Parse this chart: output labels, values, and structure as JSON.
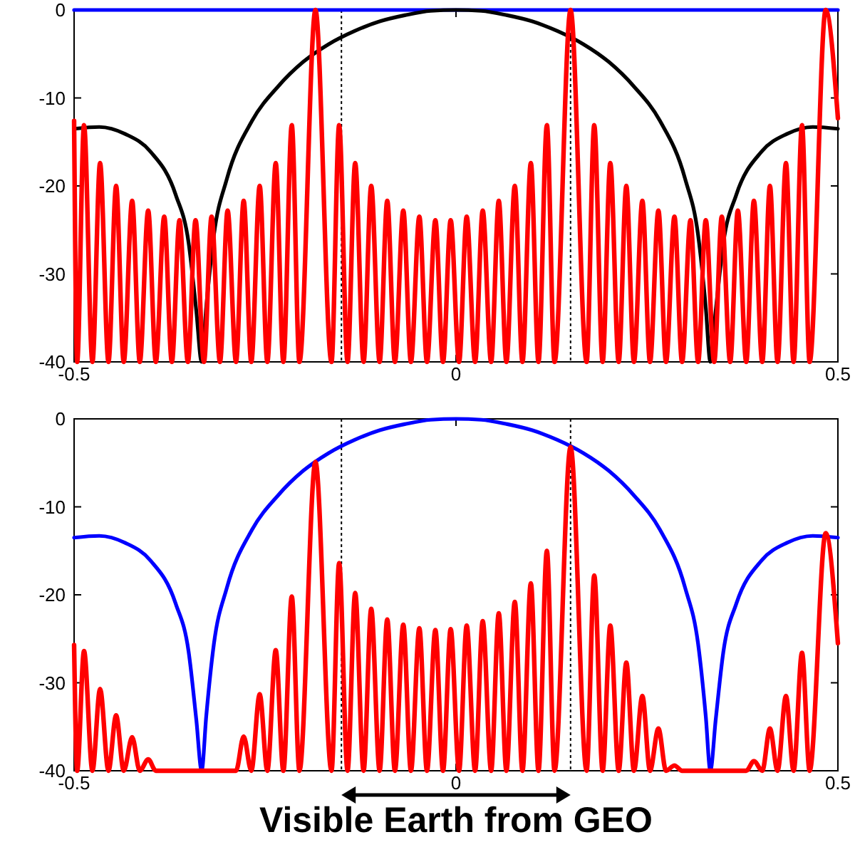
{
  "chart_data": [
    {
      "type": "line",
      "xlim": [
        -0.5,
        0.5
      ],
      "ylim": [
        -40,
        0
      ],
      "xticks": [
        -0.5,
        0,
        0.5
      ],
      "yticks": [
        -40,
        -30,
        -20,
        -10,
        0
      ],
      "ref_lines": [
        {
          "axis": "x",
          "value": -0.15,
          "color": "#000000",
          "line_style": "dotted"
        },
        {
          "axis": "x",
          "value": 0.15,
          "color": "#000000",
          "line_style": "dotted"
        }
      ],
      "series": [
        {
          "color": "#0000ff",
          "x": [
            -0.5,
            0.5
          ],
          "values": [
            0,
            0
          ]
        },
        {
          "color": "#000000",
          "x": [
            -0.5,
            -0.467,
            -0.433,
            -0.4,
            -0.367,
            -0.35,
            -0.34,
            -0.333,
            -0.327,
            -0.317,
            -0.3,
            -0.267,
            -0.233,
            -0.2,
            -0.167,
            -0.133,
            -0.1,
            -0.067,
            -0.033,
            0,
            0.033,
            0.067,
            0.1,
            0.133,
            0.167,
            0.2,
            0.233,
            0.267,
            0.3,
            0.317,
            0.327,
            0.333,
            0.34,
            0.35,
            0.367,
            0.4,
            0.433,
            0.467,
            0.5
          ],
          "values": [
            -13.5,
            -13.3,
            -14.1,
            -16.1,
            -21,
            -26.5,
            -34.2,
            -40,
            -33.8,
            -25.6,
            -19.2,
            -12.6,
            -8.7,
            -5.9,
            -3.9,
            -2.4,
            -1.3,
            -0.6,
            -0.1,
            0,
            -0.1,
            -0.6,
            -1.3,
            -2.4,
            -3.9,
            -5.9,
            -8.7,
            -12.6,
            -19.2,
            -25.6,
            -33.8,
            -40,
            -34.2,
            -26.5,
            -21,
            -16.1,
            -14.1,
            -13.3,
            -13.5
          ]
        },
        {
          "color": "#ff0000",
          "x": [
            -0.5,
            -0.496,
            -0.487,
            -0.476,
            -0.466,
            -0.455,
            -0.445,
            -0.435,
            -0.424,
            -0.414,
            -0.403,
            -0.393,
            -0.382,
            -0.372,
            -0.362,
            -0.351,
            -0.341,
            -0.33,
            -0.32,
            -0.309,
            -0.299,
            -0.288,
            -0.278,
            -0.268,
            -0.257,
            -0.247,
            -0.236,
            -0.226,
            -0.215,
            -0.205,
            -0.184,
            -0.163,
            -0.153,
            -0.142,
            -0.132,
            -0.121,
            -0.111,
            -0.1,
            -0.09,
            -0.08,
            -0.069,
            -0.059,
            -0.048,
            -0.038,
            -0.027,
            -0.017,
            -0.007,
            0.004,
            0.014,
            0.025,
            0.035,
            0.046,
            0.056,
            0.066,
            0.077,
            0.087,
            0.098,
            0.108,
            0.119,
            0.129,
            0.15,
            0.171,
            0.181,
            0.192,
            0.202,
            0.213,
            0.223,
            0.233,
            0.244,
            0.254,
            0.265,
            0.275,
            0.286,
            0.296,
            0.307,
            0.317,
            0.327,
            0.338,
            0.348,
            0.359,
            0.369,
            0.38,
            0.39,
            0.401,
            0.411,
            0.421,
            0.432,
            0.442,
            0.453,
            0.463,
            0.484,
            0.5
          ],
          "values": [
            -12.6,
            -40,
            -13.1,
            -40,
            -17.4,
            -40,
            -20,
            -40,
            -21.7,
            -40,
            -22.8,
            -40,
            -23.5,
            -40,
            -23.9,
            -40,
            -23.9,
            -40,
            -23.5,
            -40,
            -22.8,
            -40,
            -21.7,
            -40,
            -20,
            -40,
            -17.4,
            -40,
            -13.1,
            -40,
            0,
            -40,
            -13.1,
            -40,
            -17.4,
            -40,
            -20,
            -40,
            -21.7,
            -40,
            -22.8,
            -40,
            -23.5,
            -40,
            -23.9,
            -40,
            -23.9,
            -40,
            -23.5,
            -40,
            -22.8,
            -40,
            -21.7,
            -40,
            -20,
            -40,
            -17.4,
            -40,
            -13.1,
            -40,
            0,
            -40,
            -13.1,
            -40,
            -17.4,
            -40,
            -20,
            -40,
            -21.7,
            -40,
            -22.8,
            -40,
            -23.5,
            -40,
            -23.9,
            -40,
            -23.9,
            -40,
            -23.5,
            -40,
            -22.8,
            -40,
            -21.7,
            -40,
            -20,
            -40,
            -17.4,
            -40,
            -13.1,
            -40,
            0,
            -12.3
          ]
        }
      ]
    },
    {
      "type": "line",
      "xlim": [
        -0.5,
        0.5
      ],
      "ylim": [
        -40,
        0
      ],
      "xticks": [
        -0.5,
        0,
        0.5
      ],
      "yticks": [
        -40,
        -30,
        -20,
        -10,
        0
      ],
      "ref_lines": [
        {
          "axis": "x",
          "value": -0.15,
          "color": "#000000",
          "line_style": "dotted"
        },
        {
          "axis": "x",
          "value": 0.15,
          "color": "#000000",
          "line_style": "dotted"
        }
      ],
      "annotations": [
        "Visible Earth from GEO"
      ],
      "series": [
        {
          "color": "#0000ff",
          "x": [
            -0.5,
            -0.467,
            -0.433,
            -0.4,
            -0.367,
            -0.35,
            -0.34,
            -0.333,
            -0.327,
            -0.317,
            -0.3,
            -0.267,
            -0.233,
            -0.2,
            -0.167,
            -0.133,
            -0.1,
            -0.067,
            -0.033,
            0,
            0.033,
            0.067,
            0.1,
            0.133,
            0.167,
            0.2,
            0.233,
            0.267,
            0.3,
            0.317,
            0.327,
            0.333,
            0.34,
            0.35,
            0.367,
            0.4,
            0.433,
            0.467,
            0.5
          ],
          "values": [
            -13.5,
            -13.3,
            -14.1,
            -16.1,
            -21,
            -26.5,
            -34.2,
            -40,
            -33.8,
            -25.6,
            -19.2,
            -12.6,
            -8.7,
            -5.9,
            -3.9,
            -2.4,
            -1.3,
            -0.6,
            -0.1,
            0,
            -0.1,
            -0.6,
            -1.3,
            -2.4,
            -3.9,
            -5.9,
            -8.7,
            -12.6,
            -19.2,
            -25.6,
            -33.8,
            -40,
            -34.2,
            -26.5,
            -21,
            -16.1,
            -14.1,
            -13.3,
            -13.5
          ]
        },
        {
          "color": "#ff0000",
          "x": [
            -0.5,
            -0.496,
            -0.487,
            -0.476,
            -0.466,
            -0.455,
            -0.445,
            -0.435,
            -0.424,
            -0.414,
            -0.403,
            -0.393,
            -0.382,
            -0.372,
            -0.362,
            -0.351,
            -0.341,
            -0.33,
            -0.32,
            -0.309,
            -0.299,
            -0.288,
            -0.278,
            -0.268,
            -0.257,
            -0.247,
            -0.236,
            -0.226,
            -0.215,
            -0.205,
            -0.184,
            -0.163,
            -0.153,
            -0.142,
            -0.132,
            -0.121,
            -0.111,
            -0.1,
            -0.09,
            -0.08,
            -0.069,
            -0.059,
            -0.048,
            -0.038,
            -0.027,
            -0.017,
            -0.007,
            0.004,
            0.014,
            0.025,
            0.035,
            0.046,
            0.056,
            0.066,
            0.077,
            0.087,
            0.098,
            0.108,
            0.119,
            0.129,
            0.15,
            0.171,
            0.181,
            0.192,
            0.202,
            0.213,
            0.223,
            0.233,
            0.244,
            0.254,
            0.265,
            0.275,
            0.286,
            0.296,
            0.307,
            0.317,
            0.327,
            0.338,
            0.348,
            0.359,
            0.369,
            0.38,
            0.39,
            0.401,
            0.411,
            0.421,
            0.432,
            0.442,
            0.453,
            0.463,
            0.484,
            0.5
          ],
          "values": [
            -25.7,
            -40,
            -26.4,
            -40,
            -30.7,
            -40,
            -33.7,
            -40,
            -36.2,
            -40,
            -38.7,
            -40,
            -40,
            -40,
            -40,
            -40,
            -40,
            -40,
            -40,
            -40,
            -40,
            -40,
            -36.1,
            -40,
            -31.3,
            -40,
            -26.3,
            -40,
            -20.2,
            -40,
            -4.9,
            -40,
            -16.4,
            -40,
            -19.8,
            -40,
            -21.6,
            -40,
            -22.8,
            -40,
            -23.4,
            -40,
            -23.8,
            -40,
            -24,
            -40,
            -23.9,
            -40,
            -23.5,
            -40,
            -23,
            -40,
            -22.1,
            -40,
            -20.8,
            -40,
            -18.7,
            -40,
            -15,
            -40,
            -3.2,
            -40,
            -17.8,
            -40,
            -23.5,
            -40,
            -27.7,
            -40,
            -31.5,
            -40,
            -35.2,
            -40,
            -39.4,
            -40,
            -40,
            -40,
            -40,
            -40,
            -40,
            -40,
            -40,
            -40,
            -38.9,
            -40,
            -35.2,
            -40,
            -31.5,
            -40,
            -26.6,
            -40,
            -13,
            -25.5
          ]
        }
      ]
    }
  ]
}
